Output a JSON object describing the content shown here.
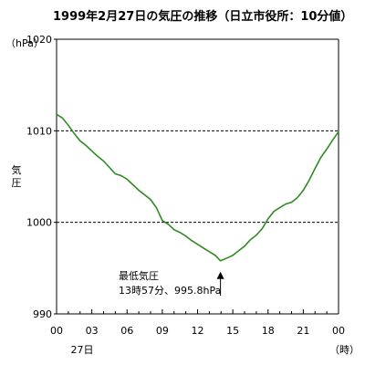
{
  "chart_data": {
    "type": "line",
    "title": "1999年2月27日の気圧の推移（日立市役所：10分値）",
    "y_unit_label": "（hPa）",
    "ylabel": "気圧",
    "x_unit_label": "（時）",
    "date_label": "27日",
    "ylim": [
      990,
      1020
    ],
    "xlim": [
      0,
      24
    ],
    "y_ticks": [
      "1020",
      "1010",
      "1000",
      "990"
    ],
    "x_ticks": [
      "00",
      "03",
      "06",
      "09",
      "12",
      "15",
      "18",
      "21",
      "00"
    ],
    "gridlines_y": [
      1010,
      1000
    ],
    "grid": "dashed horizontal at 1000 and 1010",
    "series_color": "#2e8b22",
    "series": [
      {
        "x": [
          0,
          0.5,
          1,
          1.5,
          2,
          2.5,
          3,
          3.5,
          4,
          4.5,
          5,
          5.5,
          6,
          6.5,
          7,
          7.5,
          8,
          8.5,
          9,
          9.5,
          10,
          10.5,
          11,
          11.5,
          12,
          12.5,
          13,
          13.5,
          13.95,
          14.5,
          15,
          15.5,
          16,
          16.5,
          17,
          17.5,
          18,
          18.5,
          19,
          19.5,
          20,
          20.5,
          21,
          21.5,
          22,
          22.5,
          23,
          23.5,
          24
        ],
        "values": [
          1011.8,
          1011.4,
          1010.6,
          1009.7,
          1008.9,
          1008.4,
          1007.8,
          1007.2,
          1006.7,
          1006.0,
          1005.3,
          1005.1,
          1004.7,
          1004.1,
          1003.5,
          1003.0,
          1002.5,
          1001.6,
          1000.2,
          999.8,
          999.2,
          998.9,
          998.5,
          998.0,
          997.6,
          997.2,
          996.8,
          996.4,
          995.8,
          996.1,
          996.4,
          996.9,
          997.4,
          998.1,
          998.6,
          999.3,
          1000.4,
          1001.2,
          1001.6,
          1002.0,
          1002.2,
          1002.7,
          1003.5,
          1004.6,
          1005.9,
          1007.1,
          1008.0,
          1009.0,
          1009.9
        ]
      }
    ],
    "annotation": {
      "line1": "最低気圧",
      "line2": "13時57分、995.8hPa",
      "x": 13.95,
      "y": 995.8
    }
  }
}
